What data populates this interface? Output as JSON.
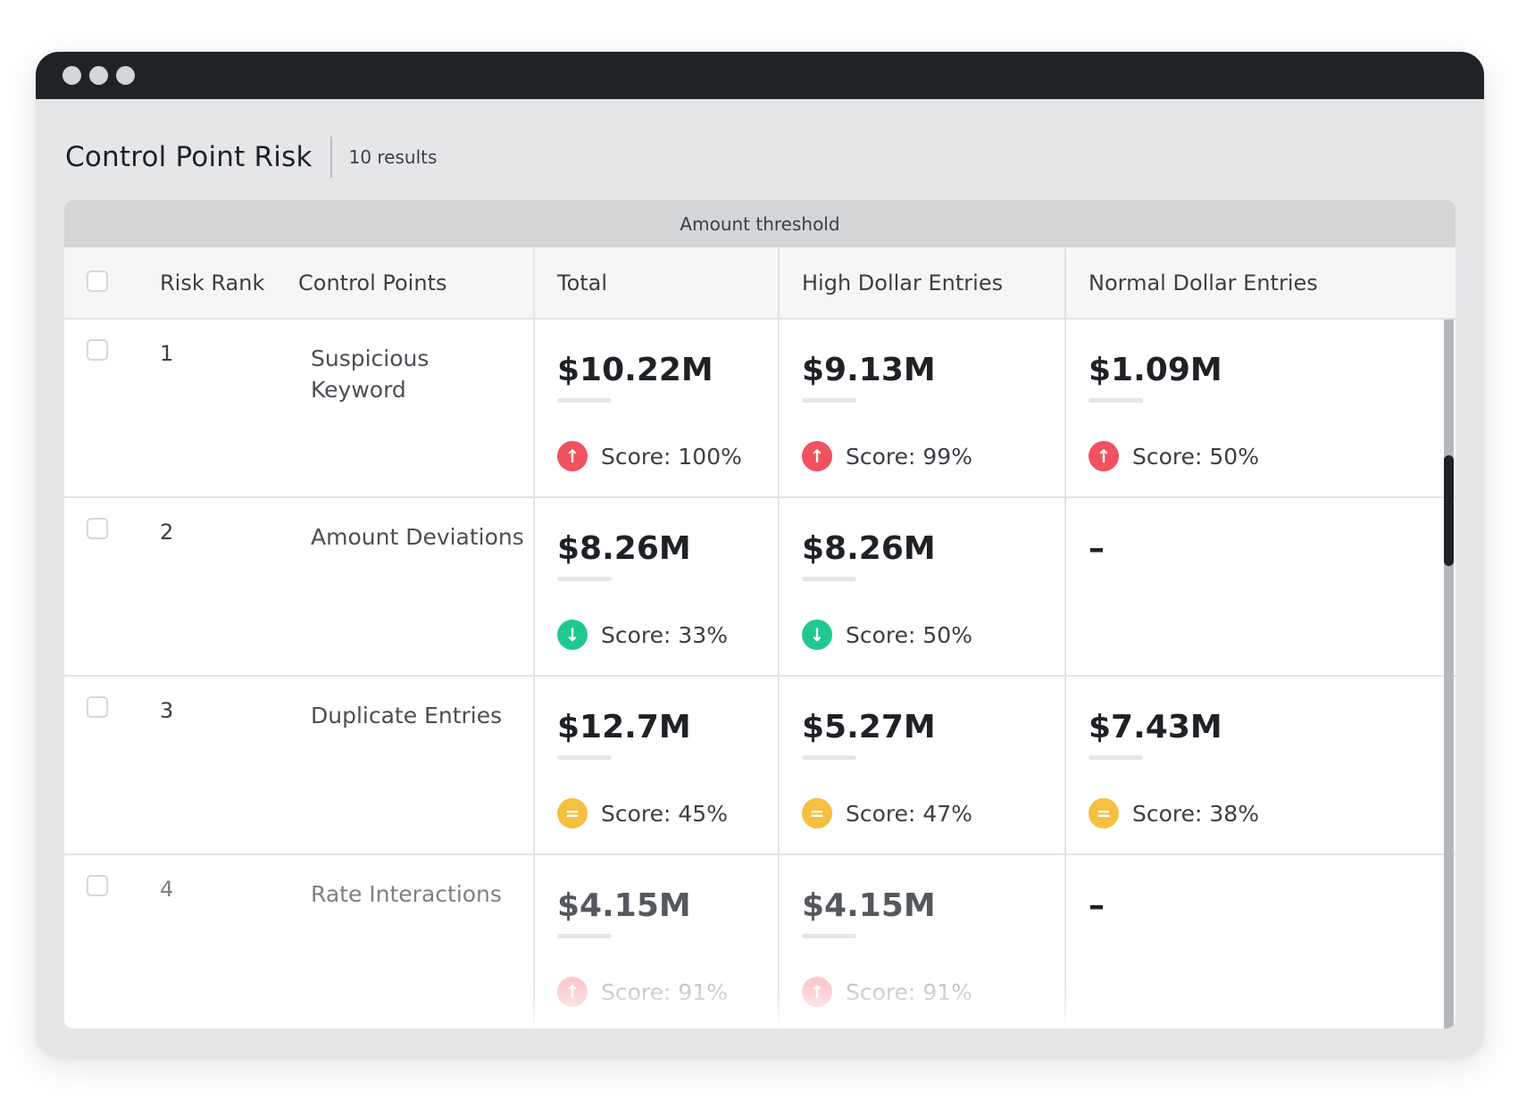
{
  "window": {
    "dots": [
      "window-dot-1",
      "window-dot-2",
      "window-dot-3"
    ]
  },
  "header": {
    "title": "Control Point Risk",
    "result_count": "10 results"
  },
  "table": {
    "group_header": "Amount threshold",
    "columns": {
      "risk_rank": "Risk Rank",
      "control_points": "Control Points",
      "total": "Total",
      "high": "High Dollar Entries",
      "normal": "Normal Dollar Entries"
    },
    "rows": [
      {
        "rank": "1",
        "name": "Suspicious Keyword",
        "total": {
          "amount": "$10.22M",
          "score": "Score: 100%",
          "trend": "up"
        },
        "high": {
          "amount": "$9.13M",
          "score": "Score: 99%",
          "trend": "up"
        },
        "normal": {
          "amount": "$1.09M",
          "score": "Score: 50%",
          "trend": "up"
        }
      },
      {
        "rank": "2",
        "name": "Amount Deviations",
        "total": {
          "amount": "$8.26M",
          "score": "Score: 33%",
          "trend": "down"
        },
        "high": {
          "amount": "$8.26M",
          "score": "Score: 50%",
          "trend": "down"
        },
        "normal": {
          "amount": "–"
        }
      },
      {
        "rank": "3",
        "name": "Duplicate Entries",
        "total": {
          "amount": "$12.7M",
          "score": "Score: 45%",
          "trend": "equal"
        },
        "high": {
          "amount": "$5.27M",
          "score": "Score: 47%",
          "trend": "equal"
        },
        "normal": {
          "amount": "$7.43M",
          "score": "Score: 38%",
          "trend": "equal"
        }
      },
      {
        "rank": "4",
        "name": "Rate Interactions",
        "total": {
          "amount": "$4.15M",
          "score": "Score: 91%",
          "trend": "up"
        },
        "high": {
          "amount": "$4.15M",
          "score": "Score: 91%",
          "trend": "up"
        },
        "normal": {
          "amount": "–"
        }
      }
    ]
  },
  "colors": {
    "up": "#f0525f",
    "down": "#1fc98e",
    "equal": "#f5bf3f",
    "titlebar": "#1f2326"
  },
  "icons": {
    "up": "arrow-up-icon",
    "down": "arrow-down-icon",
    "equal": "equal-icon"
  }
}
